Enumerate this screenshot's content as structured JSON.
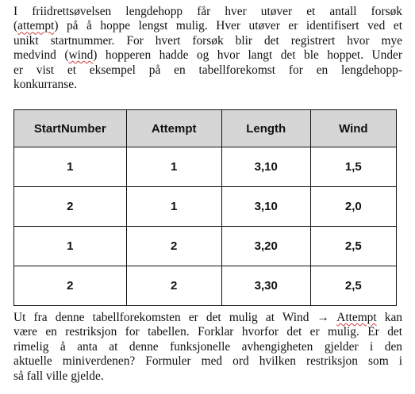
{
  "intro": {
    "lines": [
      [
        "I friidrettsøvelsen lengdehopp får hver utøver et antall forsøk"
      ],
      [
        "(",
        {
          "w": "attempt"
        },
        ") på å hoppe lengst mulig. Hver utøver er identifisert ved et"
      ],
      [
        "unikt startnummer. For hvert forsøk blir det registrert hvor mye"
      ],
      [
        "medvind (",
        {
          "w": "wind"
        },
        ") hopperen hadde og hvor langt det ble hoppet. Under"
      ],
      [
        "er vist et eksempel på en tabellforekomst for en lengdehopp-"
      ],
      [
        "konkurranse."
      ]
    ]
  },
  "table": {
    "headers": [
      "StartNumber",
      "Attempt",
      "Length",
      "Wind"
    ],
    "rows": [
      [
        "1",
        "1",
        "3,10",
        "1,5"
      ],
      [
        "2",
        "1",
        "3,10",
        "2,0"
      ],
      [
        "1",
        "2",
        "3,20",
        "2,5"
      ],
      [
        "2",
        "2",
        "3,30",
        "2,5"
      ]
    ]
  },
  "outro": {
    "lines": [
      [
        "Ut fra denne tabellforekomsten er det mulig at Wind → ",
        {
          "w": "Attempt"
        },
        " kan"
      ],
      [
        "være en restriksjon for tabellen. Forklar hvorfor det er mulig. Er det"
      ],
      [
        "rimelig å anta at denne funksjonelle avhengigheten gjelder i den"
      ],
      [
        "aktuelle miniverdenen? Formuler med ord hvilken restriksjon som i"
      ],
      [
        "så fall ville gjelde."
      ]
    ]
  },
  "colors": {
    "spellcheck_underline": "#d23c3c",
    "table_header_background": "#d6d6d6",
    "table_border": "#111111"
  }
}
